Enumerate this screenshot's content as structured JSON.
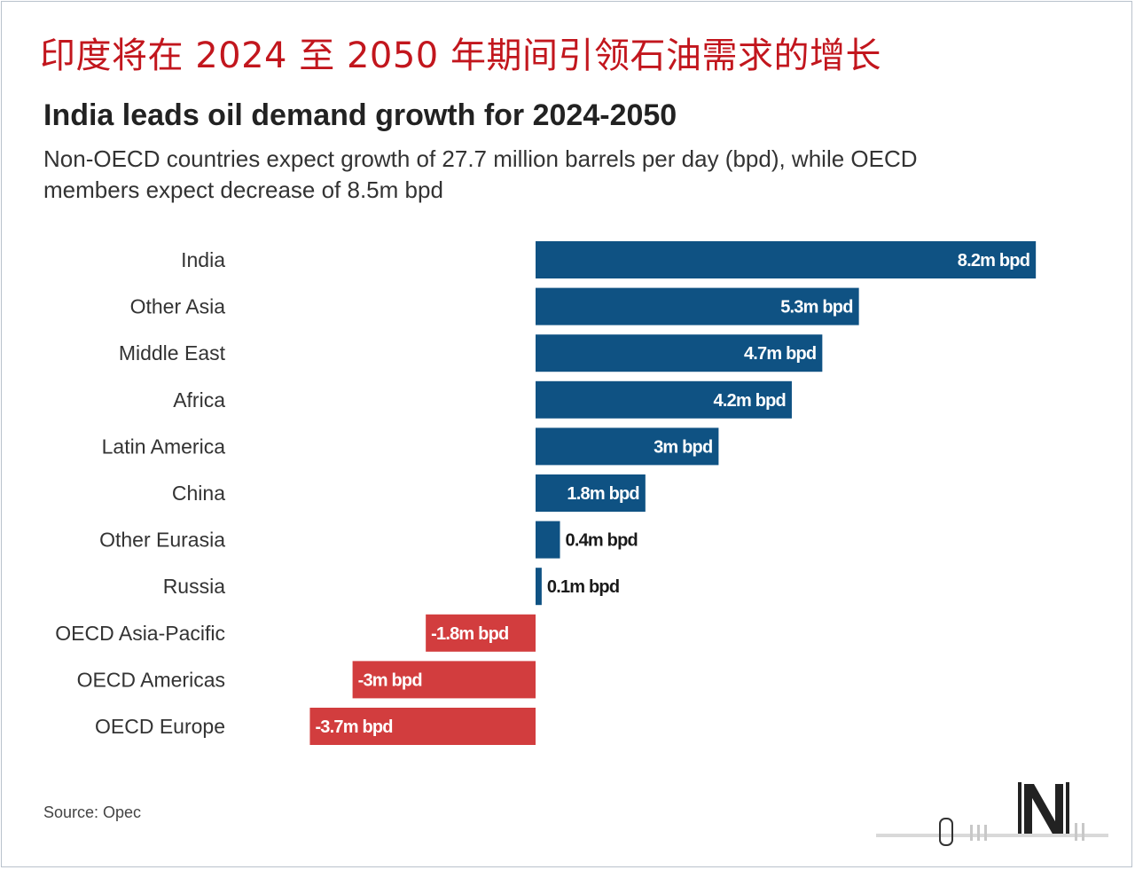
{
  "header": {
    "cn_title": "印度将在 2024 至 2050 年期间引领石油需求的增长",
    "title": "India leads oil demand growth for 2024-2050",
    "subtitle_line1": "Non-OECD countries expect growth of 27.7 million barrels per day (bpd), while OECD",
    "subtitle_line2": "members expect decrease of 8.5m bpd"
  },
  "footer": {
    "source": "Source: Opec"
  },
  "colors": {
    "positive": "#0f5283",
    "negative": "#d23d3e",
    "title_cn": "#c2161d"
  },
  "chart_data": {
    "type": "bar",
    "orientation": "horizontal",
    "title": "India leads oil demand growth for 2024-2050",
    "xlabel": "",
    "ylabel": "",
    "unit": "million bpd",
    "xlim": [
      -3.7,
      8.2
    ],
    "grid": false,
    "categories": [
      "India",
      "Other Asia",
      "Middle East",
      "Africa",
      "Latin America",
      "China",
      "Other Eurasia",
      "Russia",
      "OECD Asia-Pacific",
      "OECD Americas",
      "OECD Europe"
    ],
    "values": [
      8.2,
      5.3,
      4.7,
      4.2,
      3,
      1.8,
      0.4,
      0.1,
      -1.8,
      -3,
      -3.7
    ],
    "labels": [
      "8.2m bpd",
      "5.3m bpd",
      "4.7m bpd",
      "4.2m bpd",
      "3m bpd",
      "1.8m bpd",
      "0.4m bpd",
      "0.1m bpd",
      "-1.8m bpd",
      "-3m bpd",
      "-3.7m bpd"
    ]
  }
}
